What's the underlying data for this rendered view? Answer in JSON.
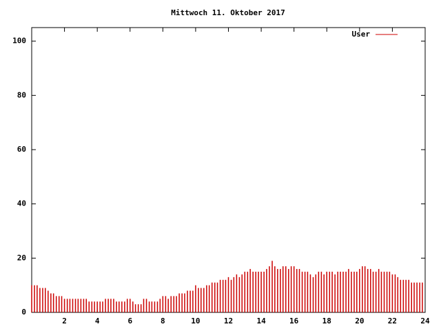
{
  "chart_data": {
    "type": "impulse",
    "title": "Mittwoch 11. Oktober 2017",
    "series": [
      {
        "name": "User",
        "color": "#cc0000",
        "x": [
          0,
          0.17,
          0.33,
          0.5,
          0.67,
          0.83,
          1,
          1.17,
          1.33,
          1.5,
          1.67,
          1.83,
          2,
          2.17,
          2.33,
          2.5,
          2.67,
          2.83,
          3,
          3.17,
          3.33,
          3.5,
          3.67,
          3.83,
          4,
          4.17,
          4.33,
          4.5,
          4.67,
          4.83,
          5,
          5.17,
          5.33,
          5.5,
          5.67,
          5.83,
          6,
          6.17,
          6.33,
          6.5,
          6.67,
          6.83,
          7,
          7.17,
          7.33,
          7.5,
          7.67,
          7.83,
          8,
          8.17,
          8.33,
          8.5,
          8.67,
          8.83,
          9,
          9.17,
          9.33,
          9.5,
          9.67,
          9.83,
          10,
          10.17,
          10.33,
          10.5,
          10.67,
          10.83,
          11,
          11.17,
          11.33,
          11.5,
          11.67,
          11.83,
          12,
          12.17,
          12.33,
          12.5,
          12.67,
          12.83,
          13,
          13.17,
          13.33,
          13.5,
          13.67,
          13.83,
          14,
          14.17,
          14.33,
          14.5,
          14.67,
          14.83,
          15,
          15.17,
          15.33,
          15.5,
          15.67,
          15.83,
          16,
          16.17,
          16.33,
          16.5,
          16.67,
          16.83,
          17,
          17.17,
          17.33,
          17.5,
          17.67,
          17.83,
          18,
          18.17,
          18.33,
          18.5,
          18.67,
          18.83,
          19,
          19.17,
          19.33,
          19.5,
          19.67,
          19.83,
          20,
          20.17,
          20.33,
          20.5,
          20.67,
          20.83,
          21,
          21.17,
          21.33,
          21.5,
          21.67,
          21.83,
          22,
          22.17,
          22.33,
          22.5,
          22.67,
          22.83,
          23,
          23.17,
          23.33,
          23.5,
          23.67,
          23.83
        ],
        "values": [
          10,
          10,
          10,
          9,
          9,
          9,
          8,
          7,
          7,
          6,
          6,
          6,
          5,
          5,
          5,
          5,
          5,
          5,
          5,
          5,
          5,
          4,
          4,
          4,
          4,
          4,
          4,
          5,
          5,
          5,
          5,
          4,
          4,
          4,
          4,
          5,
          5,
          4,
          3,
          3,
          3,
          5,
          5,
          4,
          4,
          4,
          4,
          5,
          6,
          6,
          5,
          6,
          6,
          6,
          7,
          7,
          7,
          8,
          8,
          8,
          10,
          9,
          9,
          9,
          10,
          10,
          11,
          11,
          11,
          12,
          12,
          12,
          13,
          12,
          13,
          14,
          13,
          14,
          15,
          15,
          16,
          15,
          15,
          15,
          15,
          15,
          16,
          17,
          19,
          17,
          16,
          16,
          17,
          17,
          16,
          17,
          17,
          16,
          16,
          15,
          15,
          15,
          14,
          13,
          14,
          15,
          15,
          14,
          15,
          15,
          15,
          14,
          15,
          15,
          15,
          15,
          16,
          15,
          15,
          15,
          16,
          17,
          17,
          16,
          16,
          15,
          15,
          16,
          15,
          15,
          15,
          15,
          14,
          14,
          13,
          12,
          12,
          12,
          12,
          11,
          11,
          11,
          11,
          11
        ]
      }
    ],
    "xlim": [
      0,
      24
    ],
    "xticks": [
      2,
      4,
      6,
      8,
      10,
      12,
      14,
      16,
      18,
      20,
      22,
      24
    ],
    "ylim": [
      0,
      105
    ],
    "yticks": [
      0,
      20,
      40,
      60,
      80,
      100
    ],
    "legend": "top-right"
  }
}
